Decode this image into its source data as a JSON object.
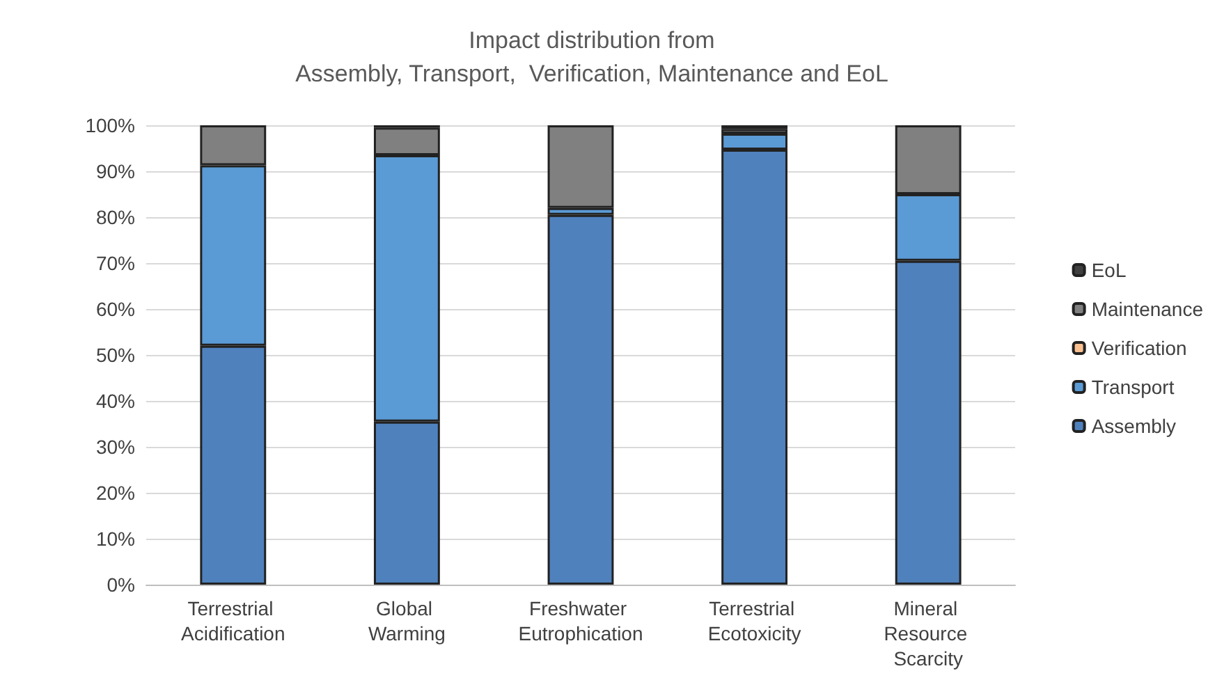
{
  "chart_data": {
    "type": "bar",
    "title": "Impact distribution from\nAssembly, Transport,  Verification, Maintenance and EoL",
    "categories": [
      "Terrestrial Acidification",
      "Global Warming",
      "Freshwater Eutrophication",
      "Terrestrial Ecotoxicity",
      "Mineral Resource Scarcity"
    ],
    "stacked": true,
    "series": [
      {
        "name": "Assembly",
        "color": "#4f81bd",
        "values": [
          52,
          35.5,
          80.5,
          94.7,
          70.5
        ]
      },
      {
        "name": "Transport",
        "color": "#5b9bd5",
        "values": [
          39.3,
          58,
          1.5,
          3.5,
          14.5
        ]
      },
      {
        "name": "Verification",
        "color": "#fac090",
        "values": [
          0,
          0,
          0,
          0,
          0
        ]
      },
      {
        "name": "Maintenance",
        "color": "#808080",
        "values": [
          8.7,
          6,
          18,
          1,
          15
        ]
      },
      {
        "name": "EoL",
        "color": "#404040",
        "values": [
          0,
          0.5,
          0,
          0.8,
          0
        ]
      }
    ],
    "ylim": [
      0,
      100
    ],
    "yticks": [
      {
        "value": 0,
        "label": "0%"
      },
      {
        "value": 10,
        "label": "10%"
      },
      {
        "value": 20,
        "label": "20%"
      },
      {
        "value": 30,
        "label": "30%"
      },
      {
        "value": 40,
        "label": "40%"
      },
      {
        "value": 50,
        "label": "50%"
      },
      {
        "value": 60,
        "label": "60%"
      },
      {
        "value": 70,
        "label": "70%"
      },
      {
        "value": 80,
        "label": "80%"
      },
      {
        "value": 90,
        "label": "90%"
      },
      {
        "value": 100,
        "label": "100%"
      }
    ],
    "grid": "y",
    "legend": "right"
  }
}
